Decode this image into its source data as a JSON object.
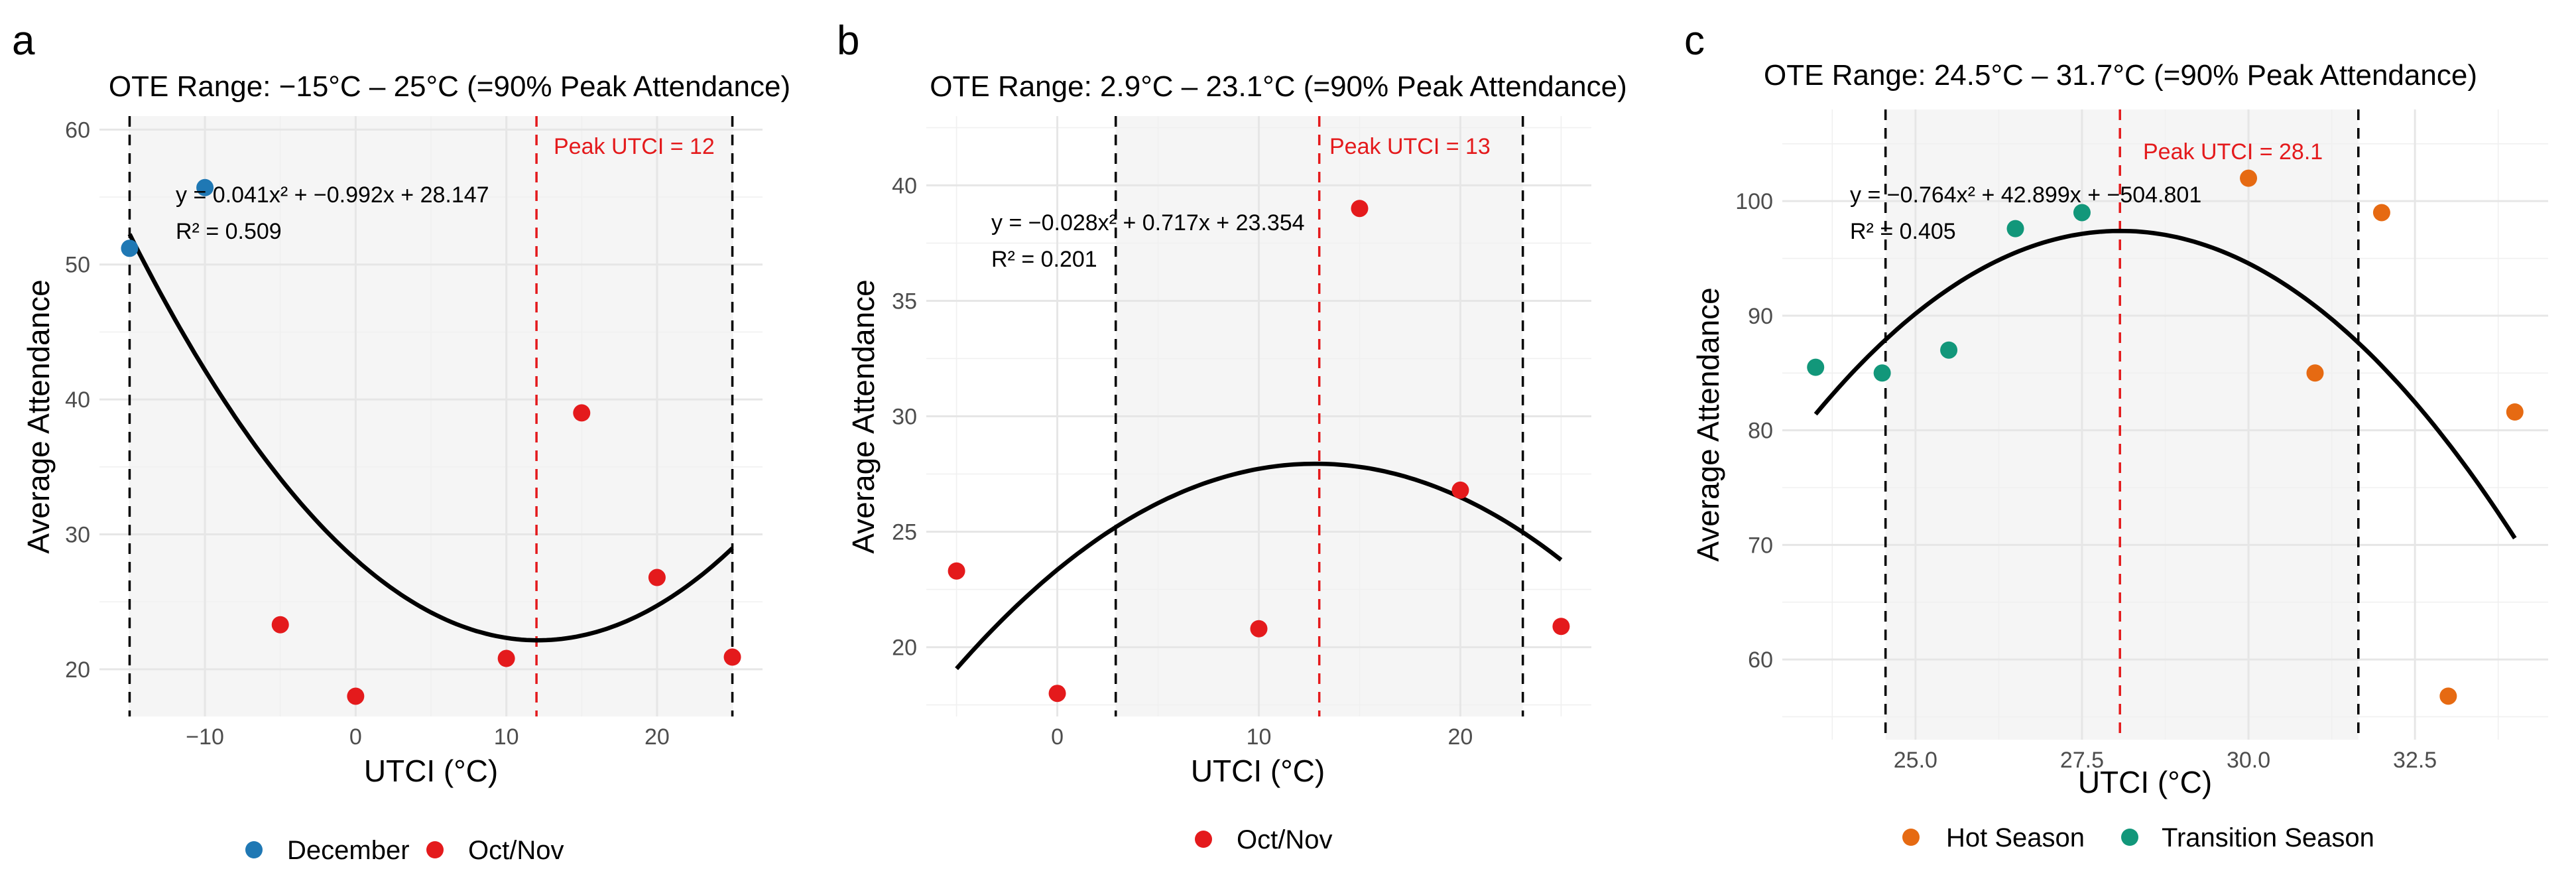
{
  "colors": {
    "december": "#1F78B4",
    "octnov": "#E41A1C",
    "hot": "#E66A12",
    "transition": "#12977A",
    "peak_line": "#E41A1C"
  },
  "chart_data": [
    {
      "type": "scatter",
      "panel": "a",
      "title": "OTE Range: −15°C – 25°C (=90% Peak Attendance)",
      "xlabel": "UTCI (°C)",
      "ylabel": "Average Attendance",
      "xlim": [
        -17,
        27
      ],
      "ylim": [
        16.5,
        61
      ],
      "xticks": [
        -10,
        0,
        10,
        20
      ],
      "xtick_labels": [
        "−10",
        "0",
        "10",
        "20"
      ],
      "yticks": [
        20,
        30,
        40,
        50,
        60
      ],
      "ytick_labels": [
        "20",
        "30",
        "40",
        "50",
        "60"
      ],
      "ote_range": [
        -15,
        25
      ],
      "peak_x": 12,
      "peak_label": "Peak UTCI = 12",
      "equation": "y = 0.041x² + −0.992x + 28.147",
      "r2": "R² = 0.509",
      "fit": {
        "a": 0.041,
        "b": -0.992,
        "c": 28.147,
        "x_range": [
          -15,
          25
        ]
      },
      "series": [
        {
          "name": "December",
          "color_key": "december",
          "points": [
            [
              -15,
              51.2
            ],
            [
              -10,
              55.7
            ]
          ]
        },
        {
          "name": "Oct/Nov",
          "color_key": "octnov",
          "points": [
            [
              -5,
              23.3
            ],
            [
              0,
              18.0
            ],
            [
              10,
              20.8
            ],
            [
              15,
              39.0
            ],
            [
              20,
              26.8
            ],
            [
              25,
              20.9
            ]
          ]
        }
      ],
      "legend": [
        "December",
        "Oct/Nov"
      ]
    },
    {
      "type": "scatter",
      "panel": "b",
      "title": "OTE Range: 2.9°C – 23.1°C (=90% Peak Attendance)",
      "xlabel": "UTCI (°C)",
      "ylabel": "Average Attendance",
      "xlim": [
        -6.5,
        26.5
      ],
      "ylim": [
        17,
        43
      ],
      "xticks": [
        0,
        10,
        20
      ],
      "xtick_labels": [
        "0",
        "10",
        "20"
      ],
      "yticks": [
        20,
        25,
        30,
        35,
        40
      ],
      "ytick_labels": [
        "20",
        "25",
        "30",
        "35",
        "40"
      ],
      "ote_range": [
        2.9,
        23.1
      ],
      "peak_x": 13,
      "peak_label": "Peak UTCI = 13",
      "equation": "y = −0.028x² + 0.717x + 23.354",
      "r2": "R² = 0.201",
      "fit": {
        "a": -0.028,
        "b": 0.717,
        "c": 23.354,
        "x_range": [
          -5,
          25
        ]
      },
      "series": [
        {
          "name": "Oct/Nov",
          "color_key": "octnov",
          "points": [
            [
              -5,
              23.3
            ],
            [
              0,
              18.0
            ],
            [
              10,
              20.8
            ],
            [
              15,
              39.0
            ],
            [
              20,
              26.8
            ],
            [
              25,
              20.9
            ]
          ]
        }
      ],
      "legend": [
        "Oct/Nov"
      ]
    },
    {
      "type": "scatter",
      "panel": "c",
      "title": "OTE Range: 24.5°C – 31.7°C (=90% Peak Attendance)",
      "xlabel": "UTCI (°C)",
      "ylabel": "Average Attendance",
      "xlim": [
        23.0,
        34.5
      ],
      "ylim": [
        53,
        108
      ],
      "xticks": [
        25.0,
        27.5,
        30.0,
        32.5
      ],
      "xtick_labels": [
        "25.0",
        "27.5",
        "30.0",
        "32.5"
      ],
      "yticks": [
        60,
        70,
        80,
        90,
        100
      ],
      "ytick_labels": [
        "60",
        "70",
        "80",
        "90",
        "100"
      ],
      "ote_range": [
        24.55,
        31.65
      ],
      "peak_x": 28.07,
      "peak_label": "Peak UTCI = 28.1",
      "equation": "y = −0.764x² + 42.899x + −504.801",
      "r2": "R² = 0.405",
      "fit": {
        "a": -0.764,
        "b": 42.899,
        "c": -504.801,
        "x_range": [
          23.5,
          34.0
        ]
      },
      "series": [
        {
          "name": "Hot Season",
          "color_key": "hot",
          "points": [
            [
              30.0,
              102.0
            ],
            [
              31.0,
              85.0
            ],
            [
              32.0,
              99.0
            ],
            [
              33.0,
              56.8
            ],
            [
              34.0,
              81.6
            ]
          ]
        },
        {
          "name": "Transition Season",
          "color_key": "transition",
          "points": [
            [
              23.5,
              85.5
            ],
            [
              24.5,
              85.0
            ],
            [
              25.5,
              87.0
            ],
            [
              26.5,
              97.6
            ],
            [
              27.5,
              99.0
            ]
          ]
        }
      ],
      "legend": [
        "Hot Season",
        "Transition Season"
      ]
    }
  ]
}
